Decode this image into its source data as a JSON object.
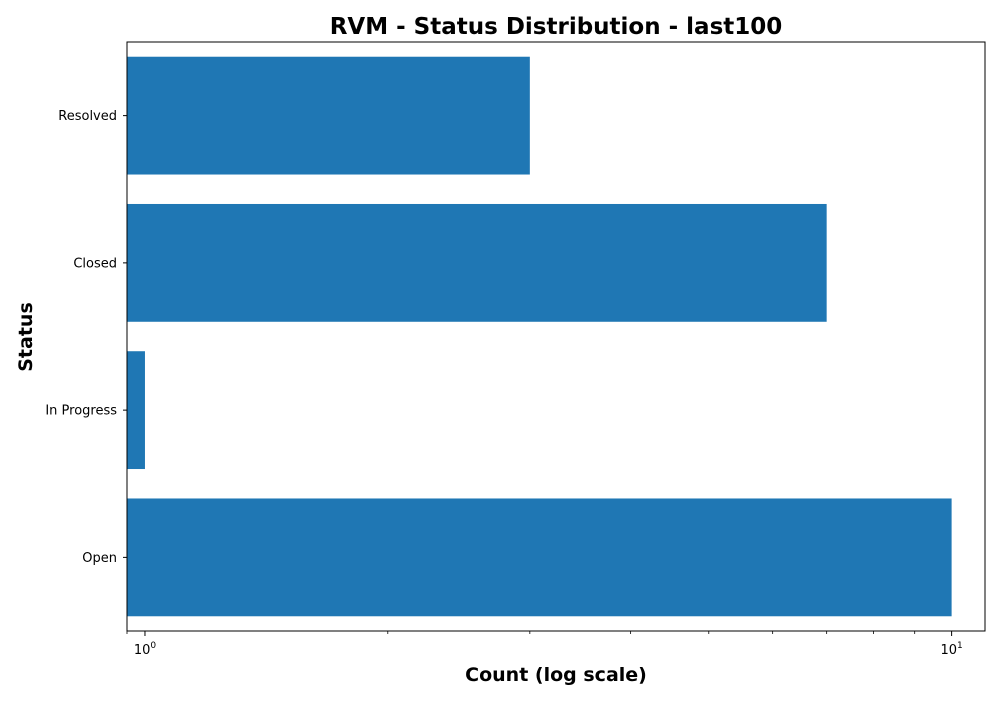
{
  "chart_data": {
    "type": "bar",
    "orientation": "horizontal",
    "title": "RVM - Status Distribution - last100",
    "xlabel": "Count (log scale)",
    "ylabel": "Status",
    "xscale": "log",
    "xlim": [
      0.95,
      11.0
    ],
    "categories": [
      "Open",
      "In Progress",
      "Closed",
      "Resolved"
    ],
    "values": [
      10,
      1,
      7,
      3
    ],
    "x_ticks": [
      {
        "value": 1,
        "base": "10",
        "exp": "0"
      },
      {
        "value": 10,
        "base": "10",
        "exp": "1"
      }
    ],
    "bar_color": "#1f77b4",
    "grid": false,
    "legend": "none"
  }
}
